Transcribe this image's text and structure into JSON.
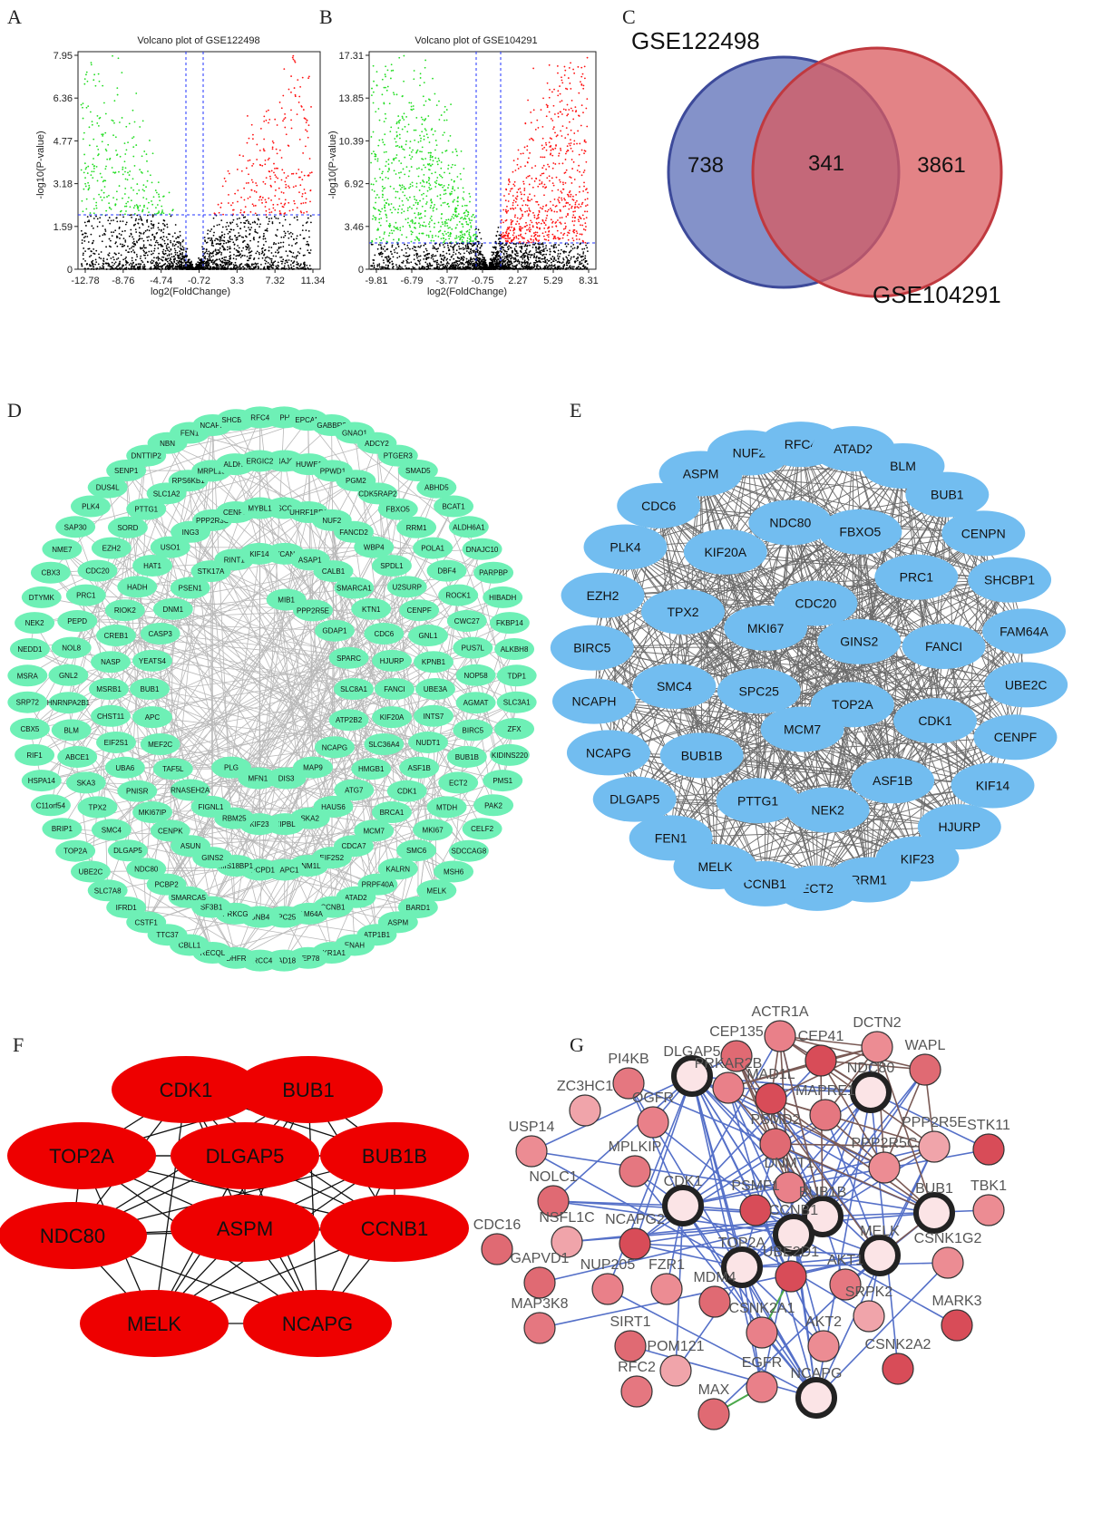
{
  "panels": {
    "A": "A",
    "B": "B",
    "C": "C",
    "D": "D",
    "E": "E",
    "F": "F",
    "G": "G"
  },
  "volcanoA": {
    "title": "Volcano plot of GSE122498",
    "xlabel": "log2(FoldChange)",
    "ylabel": "-log10(P-value)",
    "xticks": [
      "-12.78",
      "-8.76",
      "-4.74",
      "-0.72",
      "3.3",
      "7.32",
      "11.34"
    ],
    "yticks": [
      "0",
      "1.59",
      "3.18",
      "4.77",
      "6.36",
      "7.95"
    ]
  },
  "volcanoB": {
    "title": "Volcano plot of GSE104291",
    "xlabel": "log2(FoldChange)",
    "ylabel": "-log10(P-value)",
    "xticks": [
      "-9.81",
      "-6.79",
      "-3.77",
      "-0.75",
      "2.27",
      "5.29",
      "8.31"
    ],
    "yticks": [
      "0",
      "3.46",
      "6.92",
      "10.39",
      "13.85",
      "17.31"
    ]
  },
  "venn": {
    "left_label": "GSE122498",
    "right_label": "GSE104291",
    "left_only": "738",
    "overlap": "341",
    "right_only": "3861",
    "colors": {
      "left": "#5b6bb0",
      "right": "#d9595e",
      "overlap": "#8a4a6a"
    }
  },
  "networkD": {
    "node_color": "#6ef0b6",
    "nodes": [
      "DPH3",
      "EPCAM",
      "GABBR2",
      "GNAO1",
      "ADCY2",
      "PTGER3",
      "SMAD5",
      "ABHD5",
      "BCAT1",
      "ALDH6A1",
      "DNAJC10",
      "PARPBP",
      "HIBADH",
      "FKBP14",
      "ALKBH8",
      "TDP1",
      "SLC3A1",
      "ZFX",
      "KIDINS220",
      "PMS1",
      "PAK2",
      "CELF2",
      "SDCCAG8",
      "MSH6",
      "MELK",
      "BARD1",
      "ASPM",
      "ATP1B1",
      "ENAH",
      "AKR1A1",
      "CEP78",
      "RAD18",
      "XRCC4",
      "DHFR",
      "RECQL",
      "CBLL1",
      "TTC37",
      "CSTF1",
      "IFRD1",
      "SLC7A8",
      "UBE2C",
      "TOP2A",
      "BRIP1",
      "C11orf54",
      "HSPA14",
      "RIF1",
      "CBX5",
      "SRP72",
      "MSRA",
      "NEDD1",
      "NEK2",
      "DTYMK",
      "CBX3",
      "NME7",
      "SAP30",
      "PLK4",
      "DUS4L",
      "SENP1",
      "DNTTIP2",
      "NBN",
      "FEN1",
      "NCAPH",
      "SHCBP1",
      "RFC4",
      "DNAJC2",
      "HUWE1",
      "PPWD1",
      "PGM2",
      "CDK5RAP2",
      "FBXO5",
      "RRM1",
      "POLA1",
      "DBF4",
      "ROCK1",
      "CWC27",
      "PUS7L",
      "NOP58",
      "AGMAT",
      "BIRC5",
      "BUB1B",
      "ECT2",
      "MTDH",
      "MKI67",
      "SMC6",
      "KALRN",
      "PRPF40A",
      "ATAD2",
      "CCNB1",
      "FAM64A",
      "SPC25",
      "GNB4",
      "PRKCG",
      "SF3B1",
      "SMARCA5",
      "PCBP2",
      "NDC80",
      "DLGAP5",
      "SMC4",
      "TPX2",
      "SKA3",
      "ABCE1",
      "BLM",
      "HNRNPA2B1",
      "GNL2",
      "NOL8",
      "PEPD",
      "PRC1",
      "CDC20",
      "EZH2",
      "SORD",
      "PTTG1",
      "SLC1A2",
      "RPS6KB1",
      "MRPL19",
      "ALDH2",
      "ERGIC2",
      "ASCC3",
      "UHRF1BP1",
      "NUF2",
      "FANCD2",
      "WBP4",
      "SPDL1",
      "U2SURP",
      "CENPF",
      "GNL1",
      "KPNB1",
      "UBE3A",
      "INTS7",
      "NUDT1",
      "ASF1B",
      "CDK1",
      "BRCA1",
      "MCM7",
      "CDCA7",
      "EIF2S2",
      "DNM1L",
      "SNAPC1",
      "GPCPD1",
      "MIS18BP1",
      "GINS2",
      "ASUN",
      "CENPK",
      "MKI67IP",
      "PNISR",
      "UBA6",
      "EIF2S1",
      "CHST11",
      "MSRB1",
      "NASP",
      "CREB1",
      "RIOK2",
      "HADH",
      "HAT1",
      "USO1",
      "ING3",
      "PPP2R3C",
      "CENPN",
      "MYBL1",
      "VCAN",
      "ASAP1",
      "CALB1",
      "SMARCA1",
      "KTN1",
      "CDC6",
      "HJURP",
      "FANCI",
      "KIF20A",
      "SLC36A4",
      "HMGB1",
      "ATG7",
      "HAUS6",
      "SKA2",
      "NIPBL",
      "KIF23",
      "RBM25",
      "FIGNL1",
      "RNASEH2A",
      "TAF5L",
      "MEF2C",
      "APC",
      "BUB1",
      "YEATS4",
      "CASP3",
      "DNM1",
      "PSEN1",
      "STK17A",
      "RINT1",
      "KIF14",
      "MIB1",
      "PPP2R5E",
      "GDAP1",
      "SPARC",
      "SLC8A1",
      "ATP2B2",
      "NCAPG",
      "MAP9",
      "DIS3",
      "MFN1",
      "PLG"
    ]
  },
  "networkE": {
    "node_color": "#72bdf0",
    "nodes": [
      "NUF2",
      "RFC4",
      "ATAD2",
      "BLM",
      "BUB1",
      "CENPN",
      "SHCBP1",
      "FAM64A",
      "UBE2C",
      "CENPF",
      "KIF14",
      "HJURP",
      "KIF23",
      "RRM1",
      "ECT2",
      "CCNB1",
      "MELK",
      "FEN1",
      "DLGAP5",
      "NCAPG",
      "NCAPH",
      "BIRC5",
      "EZH2",
      "PLK4",
      "CDC6",
      "ASPM",
      "NDC80",
      "FBXO5",
      "PRC1",
      "FANCI",
      "CDK1",
      "ASF1B",
      "NEK2",
      "PTTG1",
      "BUB1B",
      "SMC4",
      "TPX2",
      "KIF20A",
      "CDC20",
      "GINS2",
      "TOP2A",
      "MCM7",
      "SPC25",
      "MKI67"
    ]
  },
  "networkF": {
    "node_color": "#ee0000",
    "nodes": [
      "CDK1",
      "BUB1",
      "TOP2A",
      "DLGAP5",
      "BUB1B",
      "NDC80",
      "ASPM",
      "CCNB1",
      "MELK",
      "NCAPG"
    ]
  },
  "networkG": {
    "colors": {
      "edge_blue": "#5570c8",
      "edge_brown": "#7a5a55",
      "edge_green": "#4aa84a",
      "hub_ring": "#222222"
    },
    "nodes": [
      "ACTR1A",
      "DCTN2",
      "CEP135",
      "DLGAP5",
      "CEP41",
      "PI4KB",
      "PRKAR2B",
      "NDC80",
      "WAPL",
      "ZC3HC1",
      "MAD1L",
      "MAPRE1",
      "OGFR",
      "USP14",
      "PSMD2",
      "PPP2R5E",
      "STK11",
      "MPLKIP",
      "DNMT1",
      "PPP2R5C",
      "NOLC1",
      "CDK1",
      "PSMF1",
      "BUB1B",
      "BUB1",
      "TBK1",
      "CDC16",
      "NSFL1C",
      "NCAPG2",
      "CCNB1",
      "MELK",
      "CSNK1G2",
      "GAPVD1",
      "TOP2A",
      "UBE2D1",
      "AKT1",
      "NUP205",
      "FZR1",
      "MDM4",
      "SRPK2",
      "MARK3",
      "MAP3K8",
      "CSNK2A1",
      "AKT2",
      "SIRT1",
      "POM121",
      "CSNK2A2",
      "RFC2",
      "EGFR",
      "NCAPG",
      "MAX"
    ]
  }
}
